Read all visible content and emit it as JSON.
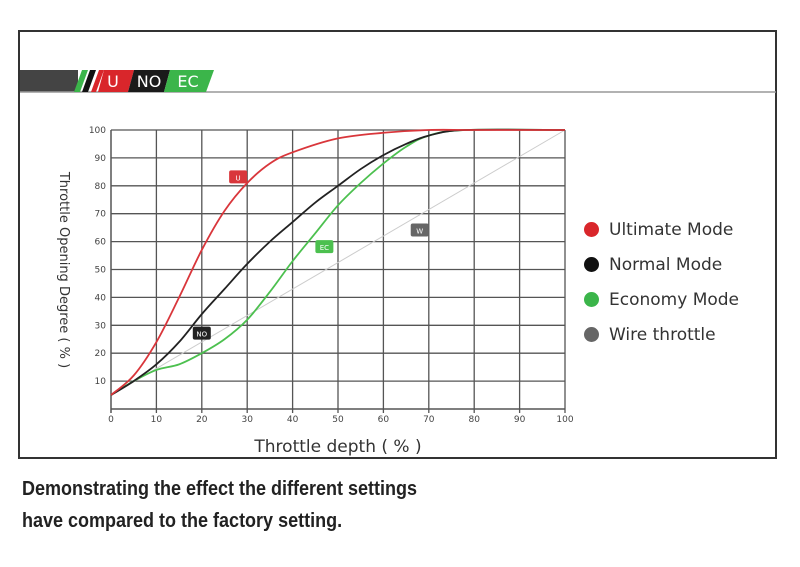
{
  "header_badges": [
    {
      "label": "U",
      "color": "#d9262b"
    },
    {
      "label": "NO",
      "color": "#1a1a1a"
    },
    {
      "label": "EC",
      "color": "#3bb54a"
    }
  ],
  "caption": {
    "line1": "Demonstrating the effect the different settings",
    "line2": "have compared to the factory setting."
  },
  "chart_data": {
    "type": "line",
    "title": "",
    "xlabel": "Throttle depth ( % )",
    "ylabel": "Throttle Opening Degree ( % )",
    "xlim": [
      0,
      100
    ],
    "ylim": [
      0,
      100
    ],
    "xticks": [
      "0",
      "10",
      "20",
      "30",
      "40",
      "50",
      "60",
      "70",
      "80",
      "90",
      "100"
    ],
    "yticks": [
      "10",
      "20",
      "30",
      "40",
      "50",
      "60",
      "70",
      "80",
      "90",
      "100"
    ],
    "grid": true,
    "legend_position": "right",
    "series": [
      {
        "name": "Ultimate Mode",
        "tag": "U",
        "color": "#d9363b",
        "x": [
          0,
          5,
          10,
          15,
          20,
          25,
          30,
          35,
          40,
          50,
          60,
          70,
          80,
          100
        ],
        "y": [
          5,
          12,
          24,
          40,
          57,
          71,
          81,
          88,
          92,
          97,
          99,
          100,
          100,
          100
        ],
        "tag_at": [
          28,
          83
        ]
      },
      {
        "name": "Normal Mode",
        "tag": "NO",
        "color": "#222222",
        "x": [
          0,
          5,
          10,
          15,
          20,
          25,
          30,
          35,
          40,
          45,
          50,
          55,
          60,
          65,
          70,
          78,
          100
        ],
        "y": [
          5,
          10,
          16,
          24,
          34,
          43,
          52,
          60,
          67,
          74,
          80,
          86,
          91,
          95,
          98,
          100,
          100
        ],
        "tag_at": [
          20,
          27
        ]
      },
      {
        "name": "Economy Mode",
        "tag": "EC",
        "color": "#4cc04f",
        "x": [
          0,
          5,
          10,
          15,
          20,
          25,
          30,
          35,
          40,
          45,
          50,
          55,
          60,
          65,
          70,
          78,
          100
        ],
        "y": [
          5,
          10,
          14,
          16,
          20,
          25,
          32,
          42,
          53,
          63,
          73,
          81,
          88,
          94,
          98,
          100,
          100
        ],
        "tag_at": [
          47,
          58
        ]
      },
      {
        "name": "Wire throttle",
        "tag": "W",
        "color": "#666666",
        "x": [
          0,
          100
        ],
        "y": [
          5,
          100
        ],
        "tag_at": [
          68,
          64
        ]
      }
    ]
  }
}
